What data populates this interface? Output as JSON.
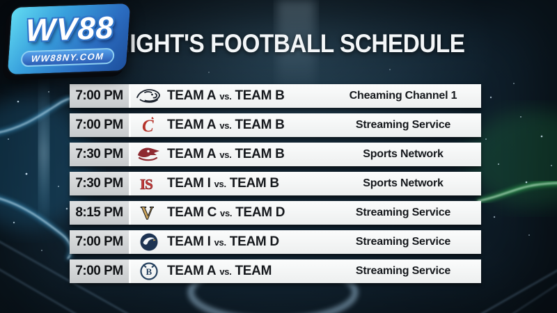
{
  "brand": {
    "name": "WV88",
    "site": "WW88NY.COM"
  },
  "header": {
    "title": "TONIGHT'S FOOTBALL SCHEDULE"
  },
  "schedule": {
    "rows": [
      {
        "time": "7:00 PM",
        "home": "TEAM A",
        "vs": "vs.",
        "away": "TEAM B",
        "channel": "Cheaming Channel 1",
        "logo": "cougar-sketch-logo"
      },
      {
        "time": "7:00 PM",
        "home": "TEAM A",
        "vs": "vs.",
        "away": "TEAM B",
        "channel": "Streaming Service",
        "logo": "red-c-flame-logo"
      },
      {
        "time": "7:30 PM",
        "home": "TEAM A",
        "vs": "vs.",
        "away": "TEAM B",
        "channel": "Sports Network",
        "logo": "redhawk-logo"
      },
      {
        "time": "7:30 PM",
        "home": "TEAM I",
        "vs": "vs.",
        "away": "TEAM B",
        "channel": "Sports Network",
        "logo": "is-letters-logo"
      },
      {
        "time": "8:15 PM",
        "home": "TEAM C",
        "vs": "vs.",
        "away": "TEAM D",
        "channel": "Streaming Service",
        "logo": "gold-v-logo"
      },
      {
        "time": "7:00 PM",
        "home": "TEAM I",
        "vs": "vs.",
        "away": "TEAM D",
        "channel": "Streaming Service",
        "logo": "navy-eagle-circle-logo"
      },
      {
        "time": "7:00 PM",
        "home": "TEAM A",
        "vs": "vs.",
        "away": "TEAM",
        "channel": "Streaming Service",
        "logo": "navy-crest-ring-logo"
      }
    ]
  },
  "colors": {
    "accent-green": "#3fe266",
    "accent-blue": "#49b4ec",
    "row-bg": "#edefef",
    "time-bg": "#c7cacc",
    "title-color": "#f3f6f8",
    "brand-grad-a": "#62dcf2",
    "brand-grad-b": "#1d4f9c"
  }
}
